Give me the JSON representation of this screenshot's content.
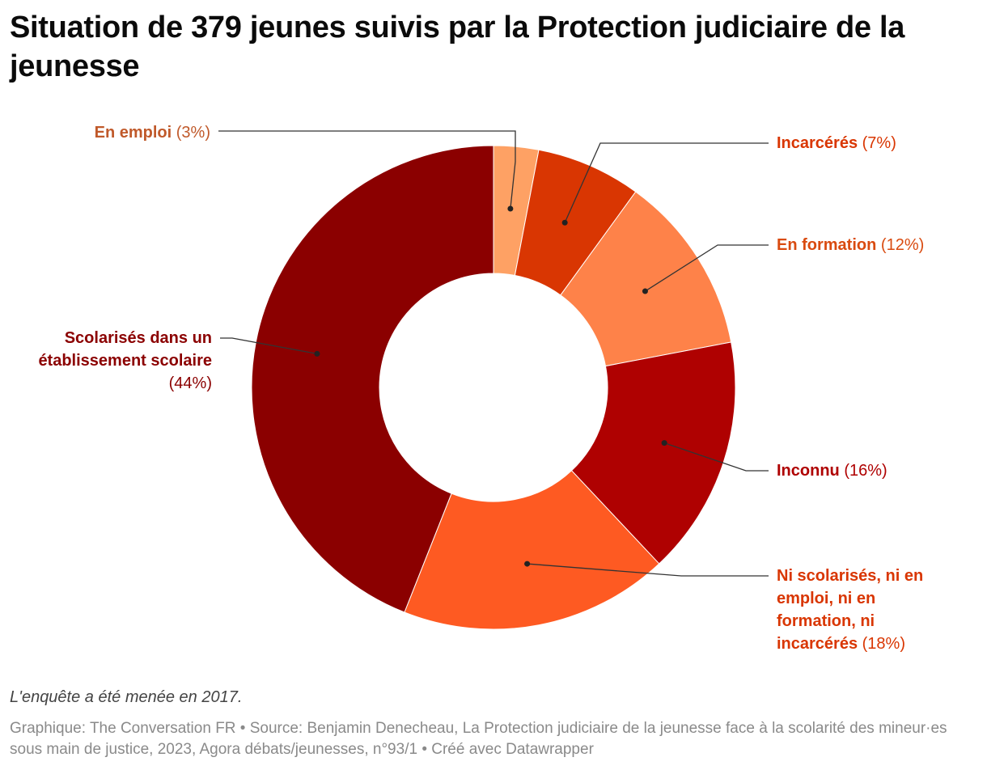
{
  "chart_data": {
    "type": "pie",
    "title": "Situation de 379 jeunes suivis par la Protection judiciaire de la jeunesse",
    "unit": "%",
    "slices": [
      {
        "label": "En emploi",
        "value": 3,
        "pct_text": "(3%)",
        "color": "#fea164",
        "label_color": "#c0592a"
      },
      {
        "label": "Incarcérés",
        "value": 7,
        "pct_text": "(7%)",
        "color": "#d93602",
        "label_color": "#d93602"
      },
      {
        "label": "En formation",
        "value": 12,
        "pct_text": "(12%)",
        "color": "#fe8249",
        "label_color": "#d94b10"
      },
      {
        "label": "Inconnu",
        "value": 16,
        "pct_text": "(16%)",
        "color": "#af0101",
        "label_color": "#af0101"
      },
      {
        "label": "Ni scolarisés, ni en emploi, ni en formation, ni incarcérés",
        "value": 18,
        "pct_text": "(18%)",
        "color": "#fe5a22",
        "label_color": "#d93602"
      },
      {
        "label": "Scolarisés dans un établissement scolaire",
        "value": 44,
        "pct_text": "(44%)",
        "color": "#8b0000",
        "label_color": "#8b0000"
      }
    ]
  },
  "note": "L'enquête a été menée en 2017.",
  "footer": "Graphique: The Conversation FR • Source: Benjamin Denecheau, La Protection judiciaire de la jeunesse face à la scolarité des mineur·es sous main de justice, 2023, Agora débats/jeunesses, n°93/1 • Créé avec Datawrapper"
}
